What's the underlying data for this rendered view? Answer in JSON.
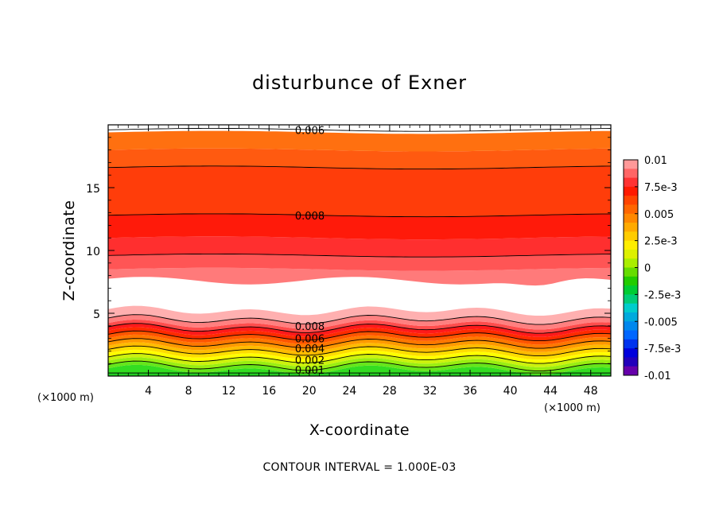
{
  "chart_data": {
    "type": "contour",
    "title": "disturbunce of Exner",
    "xlabel": "X-coordinate",
    "ylabel": "Z-coordinate",
    "x_unit": "(×1000 m)",
    "y_unit": "(×1000 m)",
    "xlim": [
      0,
      50
    ],
    "ylim": [
      0,
      20
    ],
    "x_ticks": [
      "4",
      "8",
      "12",
      "16",
      "20",
      "24",
      "28",
      "32",
      "36",
      "40",
      "44",
      "48"
    ],
    "y_ticks": [
      "5",
      "10",
      "15"
    ],
    "colorbar": {
      "min": -0.01,
      "max": 0.01,
      "tick_labels": [
        "0.01",
        "7.5e-3",
        "0.005",
        "2.5e-3",
        "0",
        "-2.5e-3",
        "-0.005",
        "-7.5e-3",
        "-0.01"
      ],
      "tick_values": [
        0.01,
        0.0075,
        0.005,
        0.0025,
        0,
        -0.0025,
        -0.005,
        -0.0075,
        -0.01
      ]
    },
    "contour_labels": [
      {
        "text": "0.006",
        "x": 18,
        "z": 19.6
      },
      {
        "text": "0.008",
        "x": 18,
        "z": 12.8
      },
      {
        "text": "0.008",
        "x": 18,
        "z": 4.0
      },
      {
        "text": "0.006",
        "x": 18,
        "z": 3.0
      },
      {
        "text": "0.004",
        "x": 18,
        "z": 2.2
      },
      {
        "text": "0.002",
        "x": 18,
        "z": 1.3
      },
      {
        "text": "0.001",
        "x": 18,
        "z": 0.5
      }
    ],
    "footer": "CONTOUR INTERVAL = 1.000E-03"
  }
}
